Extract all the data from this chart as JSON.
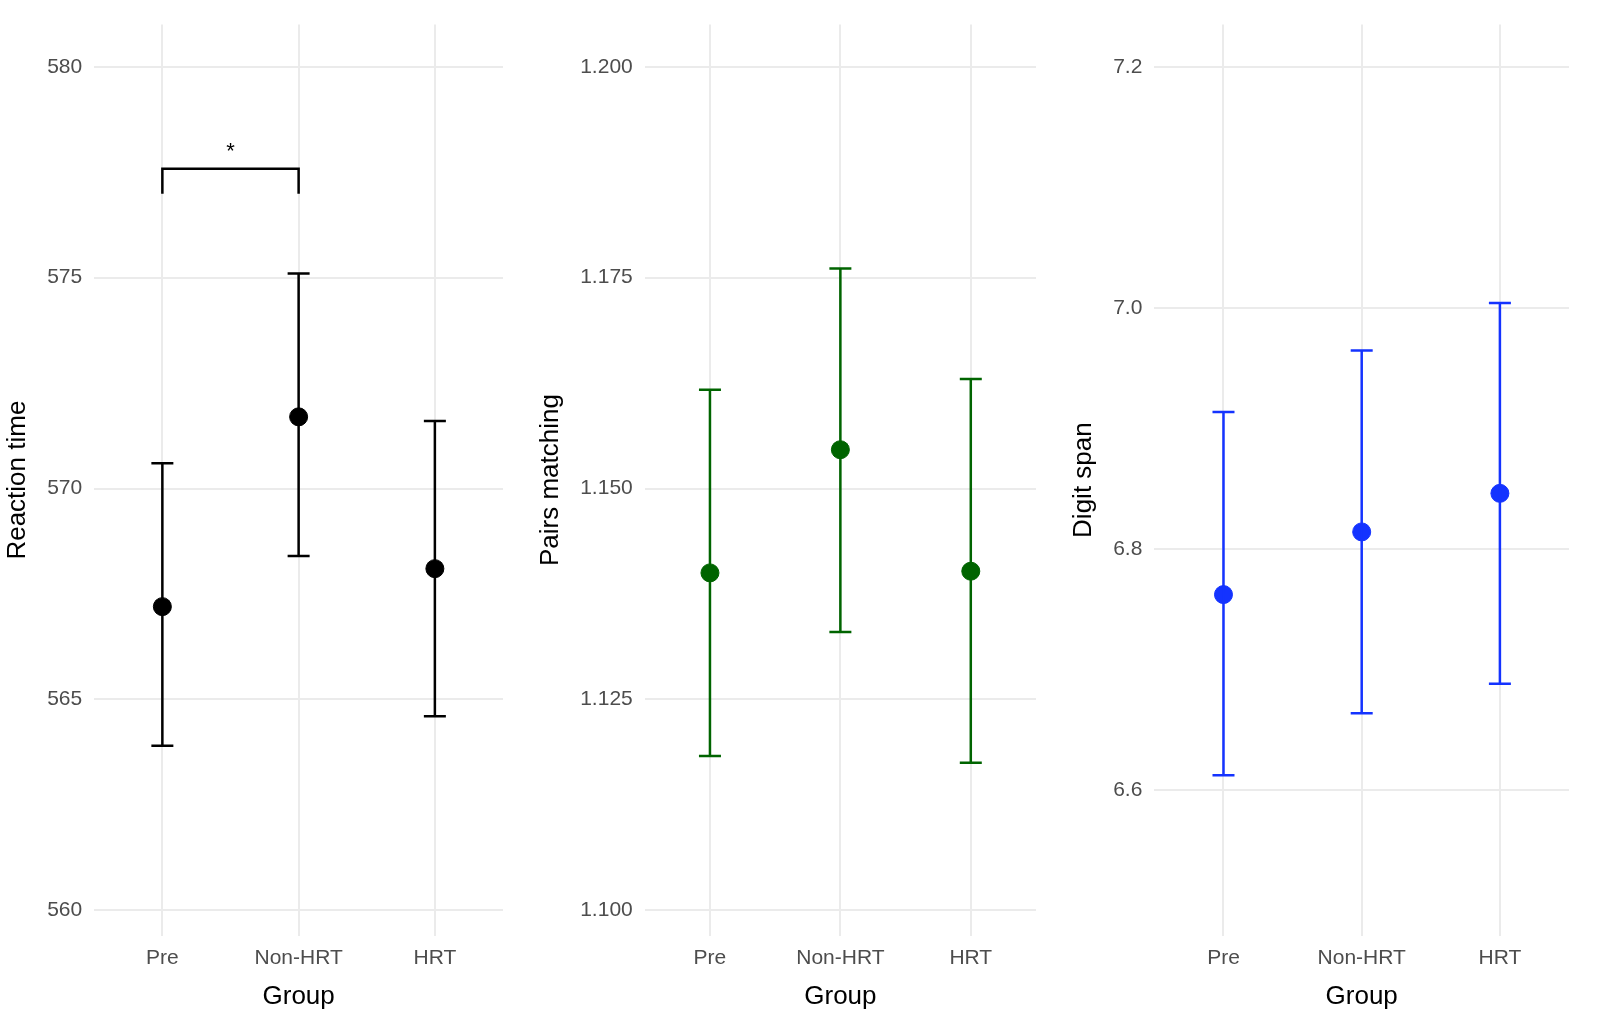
{
  "chart_data": [
    {
      "type": "scatter",
      "xlabel": "Group",
      "ylabel": "Reaction time",
      "categories": [
        "Pre",
        "Non-HRT",
        "HRT"
      ],
      "grid": true,
      "marker": "circle",
      "ylim": [
        559.4,
        581
      ],
      "yticks": [
        560,
        565,
        570,
        575,
        580
      ],
      "annotations": [
        "*"
      ],
      "series": [
        {
          "color": "#000000",
          "values": [
            567.2,
            571.7,
            568.1
          ],
          "errors": [
            [
              563.9,
              570.6
            ],
            [
              568.4,
              575.1
            ],
            [
              564.6,
              571.6
            ]
          ]
        }
      ]
    },
    {
      "type": "scatter",
      "xlabel": "Group",
      "ylabel": "Pairs matching",
      "categories": [
        "Pre",
        "Non-HRT",
        "HRT"
      ],
      "grid": true,
      "marker": "circle",
      "ylim": [
        1.097,
        1.205
      ],
      "yticks": [
        {
          "value": 1.1,
          "label": "1.100"
        },
        {
          "value": 1.125,
          "label": "1.125"
        },
        {
          "value": 1.15,
          "label": "1.150"
        },
        {
          "value": 1.175,
          "label": "1.175"
        },
        {
          "value": 1.2,
          "label": "1.200"
        }
      ],
      "series": [
        {
          "color": "#006400",
          "values": [
            1.14,
            1.1546,
            1.1402
          ],
          "errors": [
            [
              1.1183,
              1.1617
            ],
            [
              1.133,
              1.1761
            ],
            [
              1.1175,
              1.163
            ]
          ]
        }
      ]
    },
    {
      "type": "scatter",
      "xlabel": "Group",
      "ylabel": "Digit span",
      "categories": [
        "Pre",
        "Non-HRT",
        "HRT"
      ],
      "grid": true,
      "marker": "circle",
      "ylim": [
        6.479,
        7.235
      ],
      "yticks": [
        {
          "value": 6.6,
          "label": "6.6"
        },
        {
          "value": 6.8,
          "label": "6.8"
        },
        {
          "value": 7.0,
          "label": "7.0"
        },
        {
          "value": 7.2,
          "label": "7.2"
        }
      ],
      "series": [
        {
          "color": "#1433ff",
          "values": [
            6.762,
            6.814,
            6.846
          ],
          "errors": [
            [
              6.612,
              6.9135
            ],
            [
              6.6635,
              6.9645
            ],
            [
              6.688,
              7.004
            ]
          ]
        }
      ]
    }
  ]
}
